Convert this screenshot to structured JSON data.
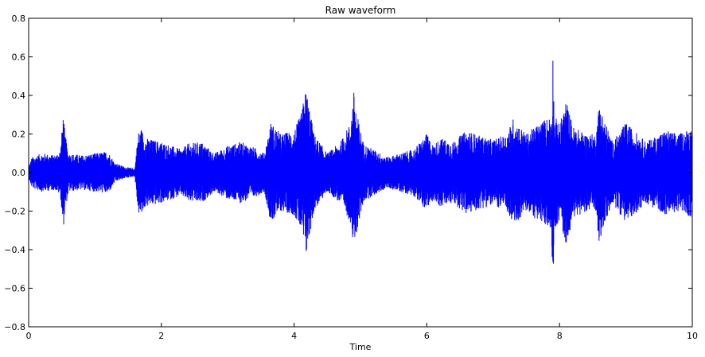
{
  "chart_data": {
    "type": "line",
    "title": "Raw waveform",
    "xlabel": "Time",
    "ylabel": "",
    "xlim": [
      0,
      10
    ],
    "ylim": [
      -0.8,
      0.8
    ],
    "xticks": [
      0,
      2,
      4,
      6,
      8,
      10
    ],
    "xtick_labels": [
      "0",
      "2",
      "4",
      "6",
      "8",
      "10"
    ],
    "yticks": [
      -0.8,
      -0.6,
      -0.4,
      -0.2,
      0.0,
      0.2,
      0.4,
      0.6,
      0.8
    ],
    "ytick_labels": [
      "−0.8",
      "−0.6",
      "−0.4",
      "−0.2",
      "0.0",
      "0.2",
      "0.4",
      "0.6",
      "0.8"
    ],
    "grid": false,
    "legend": "none",
    "series": [
      {
        "color": "#0000ff",
        "envelope": {
          "description": "approximate peak amplitude envelope of the waveform",
          "time": [
            0.0,
            0.05,
            0.2,
            0.4,
            0.48,
            0.52,
            0.55,
            0.6,
            0.8,
            1.0,
            1.2,
            1.3,
            1.45,
            1.6,
            1.65,
            1.7,
            1.75,
            2.0,
            2.3,
            2.4,
            2.6,
            2.8,
            3.0,
            3.2,
            3.4,
            3.55,
            3.65,
            3.8,
            4.0,
            4.1,
            4.18,
            4.22,
            4.3,
            4.5,
            4.7,
            4.85,
            4.9,
            4.95,
            5.05,
            5.2,
            5.4,
            5.6,
            5.8,
            6.0,
            6.1,
            6.2,
            6.4,
            6.6,
            6.8,
            7.0,
            7.2,
            7.3,
            7.5,
            7.7,
            7.88,
            7.9,
            7.92,
            8.0,
            8.1,
            8.2,
            8.4,
            8.55,
            8.6,
            8.65,
            8.8,
            9.0,
            9.3,
            9.6,
            9.8,
            10.0
          ],
          "amplitude": [
            0.03,
            0.08,
            0.1,
            0.09,
            0.12,
            0.3,
            0.2,
            0.1,
            0.09,
            0.1,
            0.11,
            0.05,
            0.03,
            0.02,
            0.21,
            0.23,
            0.18,
            0.16,
            0.12,
            0.15,
            0.16,
            0.1,
            0.14,
            0.16,
            0.13,
            0.1,
            0.26,
            0.2,
            0.22,
            0.3,
            0.44,
            0.36,
            0.2,
            0.1,
            0.16,
            0.26,
            0.42,
            0.3,
            0.15,
            0.12,
            0.08,
            0.1,
            0.12,
            0.2,
            0.14,
            0.18,
            0.16,
            0.22,
            0.19,
            0.17,
            0.2,
            0.28,
            0.2,
            0.26,
            0.3,
            0.63,
            0.3,
            0.25,
            0.38,
            0.24,
            0.2,
            0.2,
            0.38,
            0.3,
            0.16,
            0.26,
            0.16,
            0.22,
            0.2,
            0.24
          ]
        }
      }
    ]
  }
}
